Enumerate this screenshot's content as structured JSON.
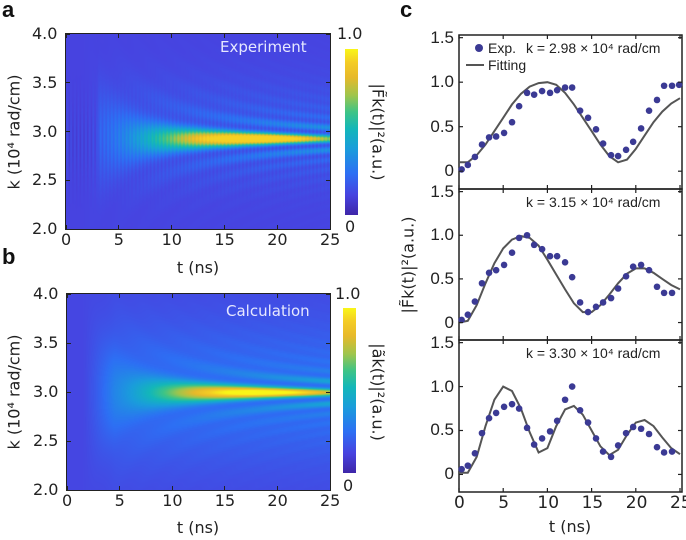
{
  "panel_letters": {
    "a": "a",
    "b": "b",
    "c": "c"
  },
  "chart_data": [
    {
      "id": "a",
      "type": "heatmap",
      "annotation": "Experiment",
      "xlabel": "t (ns)",
      "ylabel": "k (10⁴ rad/cm)",
      "xlim": [
        0,
        25
      ],
      "ylim": [
        2.0,
        4.0
      ],
      "xticks": [
        "0",
        "5",
        "10",
        "15",
        "20",
        "25"
      ],
      "yticks": [
        "2.0",
        "2.5",
        "3.0",
        "3.5",
        "4.0"
      ],
      "colorbar": {
        "label": "|F̃k(t)|²(a.u.)",
        "min_label": "0",
        "max_label": "1.0",
        "range": [
          0,
          1
        ],
        "colormap": "parula"
      }
    },
    {
      "id": "b",
      "type": "heatmap",
      "annotation": "Calculation",
      "xlabel": "t (ns)",
      "ylabel": "k (10⁴ rad/cm)",
      "xlim": [
        0,
        25
      ],
      "ylim": [
        2.0,
        4.0
      ],
      "xticks": [
        "0",
        "5",
        "10",
        "15",
        "20",
        "25"
      ],
      "yticks": [
        "2.0",
        "2.5",
        "3.0",
        "3.5",
        "4.0"
      ],
      "colorbar": {
        "label": "|ãk(t)|²(a.u.)",
        "min_label": "0",
        "max_label": "1.0",
        "range": [
          0,
          1
        ],
        "colormap": "parula"
      }
    },
    {
      "id": "c1",
      "type": "scatter+line",
      "annotation": "k = 2.98 × 10⁴ rad/cm",
      "legend": {
        "placement": "top-left",
        "entries": [
          "Exp.",
          "Fitting"
        ]
      },
      "xlim": [
        0,
        25
      ],
      "ylim": [
        -0.2,
        1.53
      ],
      "yticks": [
        "0",
        "0.5",
        "1.0",
        "1.5"
      ],
      "colors": {
        "exp": "#3b3a94",
        "fit": "#555555"
      },
      "series": [
        {
          "name": "Exp.",
          "kind": "scatter",
          "x": [
            0.3,
            1.0,
            1.8,
            2.6,
            3.4,
            4.2,
            5.1,
            6.0,
            6.8,
            7.7,
            8.5,
            9.4,
            10.3,
            11.1,
            12.0,
            12.8,
            13.7,
            14.6,
            15.5,
            16.3,
            17.2,
            18.0,
            18.9,
            19.7,
            20.6,
            21.5,
            22.4,
            23.2,
            24.1,
            24.9
          ],
          "y": [
            0.02,
            0.07,
            0.16,
            0.3,
            0.38,
            0.39,
            0.43,
            0.55,
            0.73,
            0.88,
            0.86,
            0.9,
            0.88,
            0.91,
            0.94,
            0.94,
            0.68,
            0.6,
            0.47,
            0.31,
            0.18,
            0.17,
            0.24,
            0.33,
            0.48,
            0.68,
            0.8,
            0.96,
            0.96,
            0.97
          ]
        },
        {
          "name": "Fitting",
          "kind": "line",
          "x": [
            0,
            1,
            2,
            3,
            4,
            5,
            6,
            7,
            8,
            9,
            10,
            11,
            12,
            13,
            14,
            15,
            16,
            17,
            18,
            19,
            20,
            21,
            22,
            23,
            24,
            25
          ],
          "y": [
            0.1,
            0.1,
            0.18,
            0.3,
            0.45,
            0.6,
            0.75,
            0.87,
            0.95,
            0.99,
            1.0,
            0.97,
            0.88,
            0.75,
            0.6,
            0.45,
            0.3,
            0.17,
            0.1,
            0.13,
            0.25,
            0.4,
            0.55,
            0.67,
            0.76,
            0.82
          ]
        }
      ]
    },
    {
      "id": "c2",
      "type": "scatter+line",
      "annotation": "k = 3.15 × 10⁴ rad/cm",
      "xlim": [
        0,
        25
      ],
      "ylim": [
        -0.2,
        1.53
      ],
      "yticks": [
        "0",
        "0.5",
        "1.0",
        "1.5"
      ],
      "ylabel": "|F̃k(t)|²(a.u.)",
      "colors": {
        "exp": "#3b3a94",
        "fit": "#555555"
      },
      "series": [
        {
          "name": "Exp.",
          "kind": "scatter",
          "x": [
            0.3,
            1.0,
            1.8,
            2.6,
            3.4,
            4.2,
            5.1,
            6.0,
            6.8,
            7.7,
            8.5,
            9.4,
            10.3,
            11.1,
            12.0,
            12.8,
            13.7,
            14.6,
            15.5,
            16.3,
            17.2,
            18.0,
            18.9,
            19.7,
            20.6,
            21.5,
            22.4,
            23.2,
            24.1
          ],
          "y": [
            0.03,
            0.09,
            0.24,
            0.45,
            0.57,
            0.6,
            0.66,
            0.8,
            0.97,
            1.0,
            0.89,
            0.84,
            0.76,
            0.76,
            0.69,
            0.52,
            0.23,
            0.12,
            0.18,
            0.23,
            0.28,
            0.39,
            0.53,
            0.64,
            0.66,
            0.6,
            0.41,
            0.34,
            0.34
          ]
        },
        {
          "name": "Fitting",
          "kind": "line",
          "x": [
            0,
            1,
            2,
            3,
            4,
            5,
            6,
            7,
            8,
            9,
            10,
            11,
            12,
            13,
            14,
            15,
            16,
            17,
            18,
            19,
            20,
            21,
            22,
            23,
            24,
            25
          ],
          "y": [
            0.0,
            0.02,
            0.2,
            0.45,
            0.68,
            0.85,
            0.95,
            0.99,
            0.97,
            0.88,
            0.72,
            0.55,
            0.38,
            0.22,
            0.12,
            0.12,
            0.2,
            0.32,
            0.45,
            0.56,
            0.62,
            0.62,
            0.57,
            0.5,
            0.43,
            0.38
          ]
        }
      ]
    },
    {
      "id": "c3",
      "type": "scatter+line",
      "annotation": "k = 3.30 × 10⁴ rad/cm",
      "xlabel": "t (ns)",
      "xlim": [
        0,
        25
      ],
      "ylim": [
        -0.2,
        1.53
      ],
      "xticks": [
        "0",
        "5",
        "10",
        "15",
        "20",
        "25"
      ],
      "yticks": [
        "0",
        "0.5",
        "1.0",
        "1.5"
      ],
      "colors": {
        "exp": "#3b3a94",
        "fit": "#555555"
      },
      "series": [
        {
          "name": "Exp.",
          "kind": "scatter",
          "x": [
            0.3,
            1.0,
            1.8,
            2.6,
            3.4,
            4.2,
            5.1,
            6.0,
            6.8,
            7.7,
            8.5,
            9.4,
            10.3,
            11.1,
            12.0,
            12.8,
            13.7,
            14.6,
            15.5,
            16.3,
            17.2,
            18.0,
            18.9,
            19.7,
            20.6,
            21.5,
            22.4,
            23.2,
            24.1
          ],
          "y": [
            0.06,
            0.1,
            0.24,
            0.47,
            0.64,
            0.7,
            0.77,
            0.8,
            0.75,
            0.53,
            0.34,
            0.41,
            0.49,
            0.61,
            0.85,
            1.0,
            0.73,
            0.59,
            0.41,
            0.26,
            0.2,
            0.33,
            0.47,
            0.54,
            0.52,
            0.46,
            0.31,
            0.25,
            0.26
          ]
        },
        {
          "name": "Fitting",
          "kind": "line",
          "x": [
            0,
            1,
            2,
            3,
            4,
            5,
            6,
            7,
            8,
            9,
            10,
            11,
            12,
            13,
            14,
            15,
            16,
            17,
            18,
            19,
            20,
            21,
            22,
            23,
            24,
            25
          ],
          "y": [
            0.02,
            0.02,
            0.2,
            0.55,
            0.85,
            1.0,
            0.95,
            0.75,
            0.48,
            0.25,
            0.3,
            0.55,
            0.74,
            0.78,
            0.68,
            0.5,
            0.32,
            0.22,
            0.28,
            0.45,
            0.59,
            0.62,
            0.55,
            0.42,
            0.3,
            0.23
          ]
        }
      ]
    }
  ]
}
